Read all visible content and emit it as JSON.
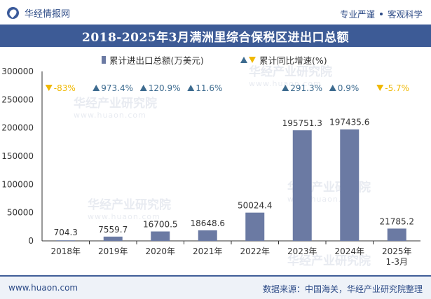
{
  "brand": {
    "name": "华经情报网",
    "slogan_left": "专业严谨",
    "slogan_right": "客观科学"
  },
  "chart_data": {
    "type": "bar",
    "title": "2018-2025年3月满洲里综合保税区进出口总额",
    "categories": [
      "2018年",
      "2019年",
      "2020年",
      "2021年",
      "2022年",
      "2023年",
      "2024年",
      "2025年\n1-3月"
    ],
    "series": [
      {
        "name": "累计进出口总额(万美元)",
        "values": [
          704.3,
          7559.7,
          16700.5,
          18648.6,
          50024.4,
          195751.3,
          197435.6,
          21785.2
        ],
        "value_labels": [
          "704.3",
          "7559.7",
          "16700.5",
          "18648.6",
          "50024.4",
          "195751.3",
          "197435.6",
          "21785.2"
        ],
        "color": "#6b7aa3"
      },
      {
        "name": "累计同比增速(%)",
        "values": [
          -83,
          973.4,
          120.9,
          11.6,
          null,
          291.3,
          0.9,
          -5.7
        ],
        "value_labels": [
          "-83%",
          "973.4%",
          "120.9%",
          "11.6%",
          "",
          "291.3%",
          "0.9%",
          "-5.7%"
        ],
        "directions": [
          "down",
          "up",
          "up",
          "up",
          "",
          "up",
          "up",
          "down"
        ]
      }
    ],
    "ylim": [
      0,
      300000
    ],
    "yticks": [
      "0",
      "50000",
      "100000",
      "150000",
      "200000",
      "250000",
      "300000"
    ],
    "grid": false,
    "legend_position": "top"
  },
  "colors": {
    "header": "#3d5b96",
    "bar": "#6b7aa3",
    "up": "#3d6b8f",
    "down": "#f0b800"
  },
  "watermark": {
    "text": "华经产业研究院",
    "url": "www.huaon.com"
  },
  "footer": {
    "url": "www.huaon.com",
    "source": "数据来源：中国海关，华经产业研究院整理"
  }
}
